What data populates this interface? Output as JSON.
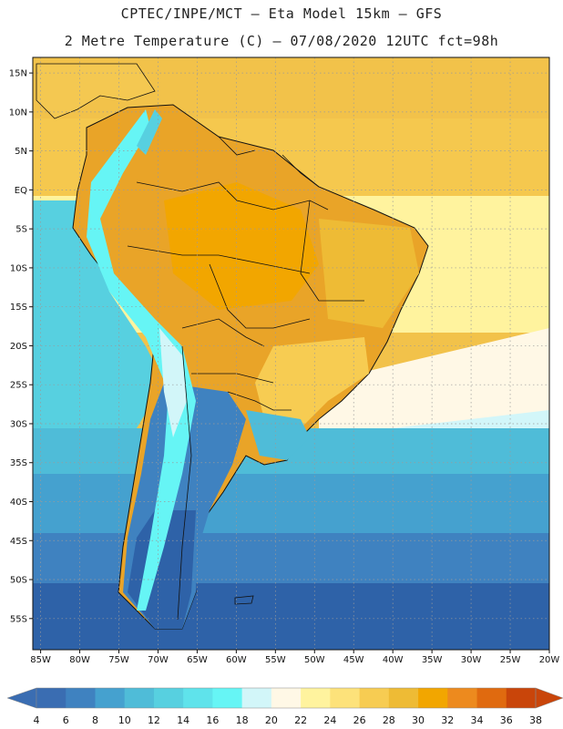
{
  "header": {
    "line1": "CPTEC/INPE/MCT –  Eta Model 15km – GFS",
    "line2": "2 Metre Temperature (C) – 07/08/2020 12UTC fct=98h"
  },
  "map": {
    "lon_range": [
      -86,
      -20
    ],
    "lat_range": [
      -59,
      17
    ],
    "lat_ticks": [
      {
        "value": 15,
        "label": "15N"
      },
      {
        "value": 10,
        "label": "10N"
      },
      {
        "value": 5,
        "label": "5N"
      },
      {
        "value": 0,
        "label": "EQ"
      },
      {
        "value": -5,
        "label": "5S"
      },
      {
        "value": -10,
        "label": "10S"
      },
      {
        "value": -15,
        "label": "15S"
      },
      {
        "value": -20,
        "label": "20S"
      },
      {
        "value": -25,
        "label": "25S"
      },
      {
        "value": -30,
        "label": "30S"
      },
      {
        "value": -35,
        "label": "35S"
      },
      {
        "value": -40,
        "label": "40S"
      },
      {
        "value": -45,
        "label": "45S"
      },
      {
        "value": -50,
        "label": "50S"
      },
      {
        "value": -55,
        "label": "55S"
      }
    ],
    "lon_ticks": [
      {
        "value": -85,
        "label": "85W"
      },
      {
        "value": -80,
        "label": "80W"
      },
      {
        "value": -75,
        "label": "75W"
      },
      {
        "value": -70,
        "label": "70W"
      },
      {
        "value": -65,
        "label": "65W"
      },
      {
        "value": -60,
        "label": "60W"
      },
      {
        "value": -55,
        "label": "55W"
      },
      {
        "value": -50,
        "label": "50W"
      },
      {
        "value": -45,
        "label": "45W"
      },
      {
        "value": -40,
        "label": "40W"
      },
      {
        "value": -35,
        "label": "35W"
      },
      {
        "value": -30,
        "label": "30W"
      },
      {
        "value": -25,
        "label": "25W"
      },
      {
        "value": -20,
        "label": "20W"
      }
    ],
    "land_color": "#e9a428",
    "ocean_south_color": "#2e62a8"
  },
  "colorbar": {
    "labels": [
      "4",
      "6",
      "8",
      "10",
      "12",
      "14",
      "16",
      "18",
      "20",
      "22",
      "24",
      "26",
      "28",
      "30",
      "32",
      "34",
      "36",
      "38"
    ],
    "colors": [
      "#3a6db2",
      "#3f82c0",
      "#45a1cf",
      "#4fbcd8",
      "#57d0e0",
      "#5fe3eb",
      "#66f5f5",
      "#d2f6f9",
      "#fff8e6",
      "#fff39e",
      "#fde27a",
      "#f7cc52",
      "#eebb35",
      "#f2a600",
      "#ed8a1e",
      "#e06a0f",
      "#c9450a"
    ]
  }
}
